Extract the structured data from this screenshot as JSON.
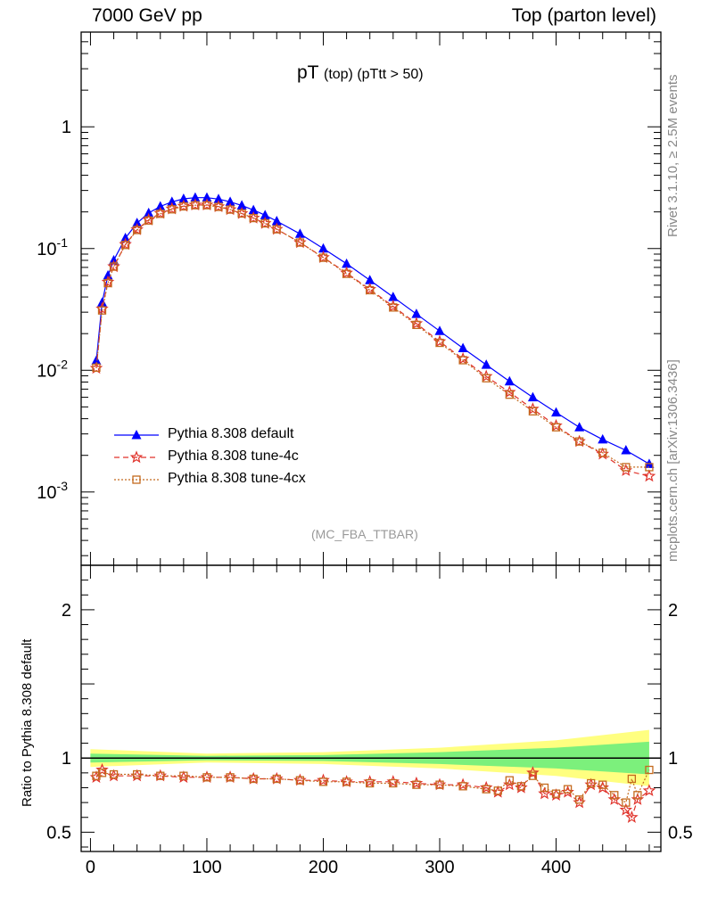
{
  "header": {
    "left": "7000 GeV pp",
    "right": "Top (parton level)"
  },
  "side_labels": {
    "rivet": "Rivet 3.1.10, ≥ 2.5M events",
    "mcplots": "mcplots.cern.ch [arXiv:1306.3436]"
  },
  "title": {
    "main": "pT",
    "sub": "(top) (pTtt > 50)"
  },
  "watermark": "(MC_FBA_TTBAR)",
  "chart_data": [
    {
      "type": "line",
      "yscale": "log",
      "xlim": [
        -8,
        490
      ],
      "ylim": [
        0.00025,
        6
      ],
      "ytick_labels": [
        {
          "value": 1,
          "label": "1"
        },
        {
          "value": 0.1,
          "label": "10^-1"
        },
        {
          "value": 0.01,
          "label": "10^-2"
        },
        {
          "value": 0.001,
          "label": "10^-3"
        }
      ],
      "legend": {
        "placement": "lower-left"
      },
      "series": [
        {
          "name": "Pythia 8.308 default",
          "color": "#0000ff",
          "marker": "triangle",
          "dash": "solid",
          "x": [
            5,
            10,
            15,
            20,
            30,
            40,
            50,
            60,
            70,
            80,
            90,
            100,
            110,
            120,
            130,
            140,
            150,
            160,
            180,
            200,
            220,
            240,
            260,
            280,
            300,
            320,
            340,
            360,
            380,
            400,
            420,
            440,
            460,
            480
          ],
          "y": [
            0.012,
            0.036,
            0.06,
            0.08,
            0.122,
            0.162,
            0.196,
            0.222,
            0.242,
            0.256,
            0.262,
            0.262,
            0.255,
            0.242,
            0.226,
            0.207,
            0.188,
            0.168,
            0.132,
            0.1,
            0.075,
            0.055,
            0.04,
            0.029,
            0.021,
            0.0152,
            0.0111,
            0.0081,
            0.006,
            0.0045,
            0.0034,
            0.0027,
            0.0022,
            0.0017
          ]
        },
        {
          "name": "Pythia 8.308 tune-4c",
          "color": "#e0332b",
          "marker": "star",
          "dash": "dashed",
          "x": [
            5,
            10,
            15,
            20,
            30,
            40,
            50,
            60,
            70,
            80,
            90,
            100,
            110,
            120,
            130,
            140,
            150,
            160,
            180,
            200,
            220,
            240,
            260,
            280,
            300,
            320,
            340,
            360,
            380,
            400,
            420,
            440,
            460,
            480
          ],
          "y": [
            0.0104,
            0.032,
            0.053,
            0.071,
            0.108,
            0.143,
            0.172,
            0.195,
            0.212,
            0.223,
            0.228,
            0.228,
            0.221,
            0.209,
            0.194,
            0.178,
            0.161,
            0.144,
            0.112,
            0.0845,
            0.063,
            0.0462,
            0.0335,
            0.0242,
            0.0172,
            0.0124,
            0.0089,
            0.0066,
            0.0048,
            0.0035,
            0.0026,
            0.00205,
            0.0015,
            0.00135
          ]
        },
        {
          "name": "Pythia 8.308 tune-4cx",
          "color": "#c46a1e",
          "marker": "square-open",
          "dash": "dotted",
          "x": [
            5,
            10,
            15,
            20,
            30,
            40,
            50,
            60,
            70,
            80,
            90,
            100,
            110,
            120,
            130,
            140,
            150,
            160,
            180,
            200,
            220,
            240,
            260,
            280,
            300,
            320,
            340,
            360,
            380,
            400,
            420,
            440,
            460,
            480
          ],
          "y": [
            0.0105,
            0.031,
            0.052,
            0.071,
            0.107,
            0.142,
            0.17,
            0.193,
            0.21,
            0.222,
            0.227,
            0.227,
            0.22,
            0.209,
            0.194,
            0.178,
            0.161,
            0.144,
            0.112,
            0.084,
            0.062,
            0.0455,
            0.0328,
            0.0236,
            0.0168,
            0.0121,
            0.0086,
            0.0063,
            0.0046,
            0.0034,
            0.0026,
            0.0021,
            0.0016,
            0.0016
          ]
        }
      ]
    },
    {
      "type": "line",
      "xlim": [
        -8,
        490
      ],
      "ylim": [
        0.37,
        2.3
      ],
      "ylabel": "Ratio to Pythia 8.308 default",
      "xtick_labels": [
        {
          "value": 0,
          "label": "0"
        },
        {
          "value": 100,
          "label": "100"
        },
        {
          "value": 200,
          "label": "200"
        },
        {
          "value": 300,
          "label": "300"
        },
        {
          "value": 400,
          "label": "400"
        }
      ],
      "ytick_labels": [
        {
          "value": 0.5,
          "label": "0.5"
        },
        {
          "value": 1,
          "label": "1"
        },
        {
          "value": 2,
          "label": "2"
        }
      ],
      "bands": {
        "x": [
          0,
          100,
          200,
          300,
          400,
          480
        ],
        "yellow_halfwidth": [
          0.06,
          0.03,
          0.04,
          0.07,
          0.12,
          0.19
        ],
        "green_halfwidth": [
          0.03,
          0.015,
          0.02,
          0.04,
          0.07,
          0.11
        ]
      },
      "series": [
        {
          "name": "Pythia 8.308 tune-4c",
          "color": "#e0332b",
          "marker": "star",
          "dash": "dashed",
          "x": [
            5,
            10,
            20,
            40,
            60,
            80,
            100,
            120,
            140,
            160,
            180,
            200,
            220,
            240,
            260,
            280,
            300,
            320,
            340,
            350,
            360,
            370,
            380,
            390,
            400,
            410,
            420,
            430,
            440,
            450,
            460,
            465,
            470,
            480
          ],
          "y": [
            0.87,
            0.92,
            0.88,
            0.88,
            0.88,
            0.87,
            0.87,
            0.87,
            0.86,
            0.86,
            0.85,
            0.85,
            0.84,
            0.84,
            0.84,
            0.83,
            0.82,
            0.82,
            0.8,
            0.77,
            0.82,
            0.8,
            0.9,
            0.76,
            0.75,
            0.77,
            0.7,
            0.82,
            0.8,
            0.72,
            0.65,
            0.6,
            0.72,
            0.78
          ]
        },
        {
          "name": "Pythia 8.308 tune-4cx",
          "color": "#c46a1e",
          "marker": "square-open",
          "dash": "dotted",
          "x": [
            5,
            10,
            20,
            40,
            60,
            80,
            100,
            120,
            140,
            160,
            180,
            200,
            220,
            240,
            260,
            280,
            300,
            320,
            340,
            350,
            360,
            370,
            380,
            390,
            400,
            410,
            420,
            430,
            440,
            450,
            460,
            465,
            470,
            480
          ],
          "y": [
            0.88,
            0.9,
            0.89,
            0.89,
            0.88,
            0.88,
            0.87,
            0.87,
            0.86,
            0.86,
            0.85,
            0.84,
            0.84,
            0.83,
            0.83,
            0.82,
            0.82,
            0.81,
            0.79,
            0.78,
            0.85,
            0.81,
            0.88,
            0.8,
            0.76,
            0.79,
            0.72,
            0.83,
            0.82,
            0.75,
            0.7,
            0.86,
            0.75,
            0.92
          ]
        }
      ]
    }
  ]
}
